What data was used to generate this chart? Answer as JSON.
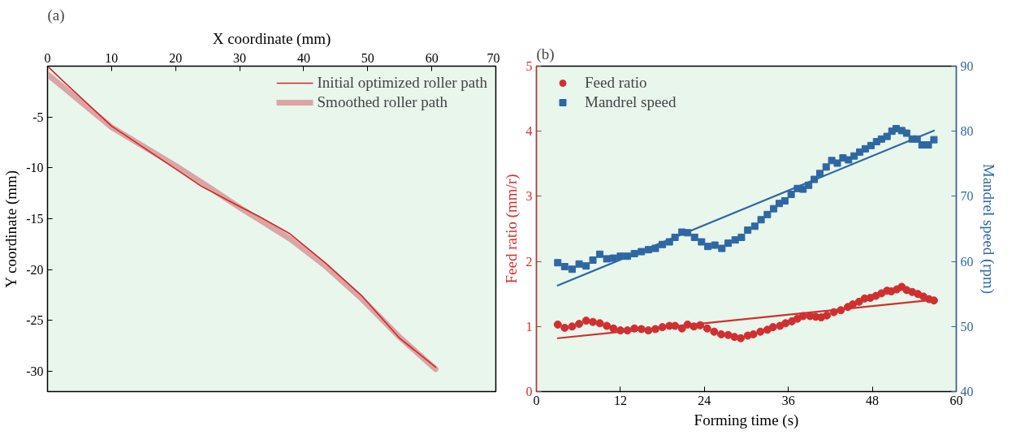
{
  "chart_data": [
    {
      "type": "line",
      "title": "(a)",
      "xlabel": "X coordinate (mm)",
      "ylabel": "Y coordinate (mm)",
      "xlim": [
        0,
        70
      ],
      "xticks": [
        0,
        10,
        20,
        30,
        40,
        50,
        60,
        70
      ],
      "ylim": [
        -32,
        0
      ],
      "yticks": [
        -30,
        -25,
        -20,
        -15,
        -10,
        -5
      ],
      "grid": false,
      "legend": "top right",
      "series": [
        {
          "name": "Initial optimized roller path",
          "color": "#cc2a2a",
          "x": [
            0,
            2.5,
            10,
            20,
            24,
            30,
            33.1,
            37.9,
            43.3,
            49.1,
            54.9,
            60.6
          ],
          "values": [
            0,
            -1.5,
            -5.9,
            -10.1,
            -11.8,
            -13.8,
            -14.8,
            -16.5,
            -19.3,
            -22.6,
            -26.7,
            -29.6
          ]
        },
        {
          "name": "Smoothed roller path",
          "color": "#dba5a5",
          "x": [
            0,
            2.5,
            10,
            20,
            24,
            30,
            33.1,
            37.9,
            43.3,
            49.1,
            54.9,
            60.6
          ],
          "values": [
            -0.8,
            -2.1,
            -6.0,
            -9.8,
            -11.4,
            -13.9,
            -15.1,
            -17.0,
            -19.6,
            -22.9,
            -26.6,
            -29.8
          ]
        }
      ]
    },
    {
      "type": "scatter",
      "title": "(b)",
      "xlabel": "Forming time (s)",
      "ylabel": "Feed ratio (mm/r)",
      "y2label": "Mandrel speed (rpm)",
      "xlim": [
        0,
        60
      ],
      "xticks": [
        0,
        12,
        24,
        36,
        48,
        60
      ],
      "ylim": [
        0,
        5
      ],
      "yticks": [
        0,
        1,
        2,
        3,
        4,
        5
      ],
      "y2lim": [
        40,
        90
      ],
      "y2ticks": [
        40,
        50,
        60,
        70,
        80,
        90
      ],
      "grid": false,
      "legend": "top left",
      "series": [
        {
          "name": "Feed ratio",
          "color": "#d12f2f",
          "marker": "circle",
          "x": [
            3.05,
            4.04,
            5.1,
            6.1,
            7.1,
            8.07,
            9.06,
            10.05,
            11.0,
            12.0,
            13.0,
            14.0,
            15.0,
            16.0,
            17.0,
            18.0,
            19.0,
            19.8,
            20.8,
            21.6,
            22.5,
            23.4,
            24.4,
            25.4,
            26.4,
            27.4,
            28.3,
            29.2,
            30.2,
            31.0,
            32.0,
            33.0,
            33.8,
            34.8,
            35.6,
            36.5,
            37.3,
            38.1,
            39.1,
            39.9,
            40.7,
            41.5,
            42.5,
            43.5,
            44.5,
            45.2,
            46.1,
            46.9,
            47.7,
            48.5,
            49.3,
            50.1,
            50.7,
            51.5,
            52.2,
            52.9,
            53.7,
            54.5,
            55.3,
            56.1,
            56.8
          ],
          "values": [
            1.03,
            0.98,
            1.0,
            1.04,
            1.09,
            1.07,
            1.05,
            1.01,
            0.97,
            0.94,
            0.94,
            0.97,
            0.96,
            0.94,
            0.96,
            0.99,
            1.01,
            1.01,
            0.97,
            1.03,
            1.0,
            1.02,
            0.97,
            0.92,
            0.88,
            0.87,
            0.84,
            0.82,
            0.86,
            0.88,
            0.92,
            0.95,
            0.99,
            1.01,
            1.05,
            1.08,
            1.12,
            1.16,
            1.16,
            1.15,
            1.14,
            1.17,
            1.22,
            1.25,
            1.3,
            1.34,
            1.38,
            1.43,
            1.44,
            1.47,
            1.51,
            1.55,
            1.54,
            1.57,
            1.61,
            1.56,
            1.53,
            1.5,
            1.46,
            1.42,
            1.4
          ]
        },
        {
          "color": "#d12f2f",
          "type": "line",
          "x": [
            3.05,
            56.8
          ],
          "values": [
            0.82,
            1.41
          ]
        },
        {
          "name": "Mandrel speed",
          "color": "#2f67a3",
          "marker": "square",
          "axis": "y2",
          "x": [
            3.05,
            4.04,
            5.1,
            6.1,
            7.1,
            8.07,
            9.06,
            10.05,
            11.0,
            12.0,
            13.0,
            14.0,
            15.0,
            16.0,
            17.0,
            18.0,
            19.0,
            19.8,
            20.8,
            21.6,
            22.6,
            23.6,
            24.5,
            25.5,
            26.5,
            27.4,
            28.4,
            29.3,
            30.2,
            31.2,
            32.1,
            33.0,
            33.9,
            34.7,
            35.5,
            36.4,
            37.3,
            38.1,
            38.9,
            39.7,
            40.5,
            41.4,
            42.2,
            43.0,
            43.8,
            44.6,
            45.4,
            46.2,
            47.0,
            47.8,
            48.6,
            49.3,
            50.1,
            50.8,
            51.4,
            52.2,
            52.9,
            53.7,
            54.4,
            55.1,
            56.0,
            56.8
          ],
          "values": [
            59.8,
            59.2,
            58.8,
            59.6,
            59.3,
            60.2,
            61.1,
            60.4,
            60.5,
            60.8,
            60.8,
            61.2,
            61.5,
            61.8,
            62.0,
            62.6,
            63.0,
            63.7,
            64.5,
            64.4,
            63.7,
            63.0,
            62.3,
            62.5,
            62.0,
            62.8,
            63.3,
            63.7,
            64.8,
            65.4,
            66.4,
            67.2,
            68.1,
            68.9,
            69.3,
            70.3,
            71.2,
            71.1,
            71.7,
            72.6,
            73.5,
            74.5,
            75.5,
            75.1,
            75.9,
            75.6,
            76.2,
            76.8,
            77.3,
            77.8,
            78.4,
            78.8,
            79.2,
            80.0,
            80.4,
            80.1,
            79.7,
            78.8,
            78.8,
            77.9,
            77.9,
            78.7
          ]
        },
        {
          "color": "#2f67a3",
          "type": "line",
          "axis": "y2",
          "x": [
            3.05,
            56.8
          ],
          "values": [
            56.3,
            80.1
          ]
        }
      ]
    }
  ]
}
